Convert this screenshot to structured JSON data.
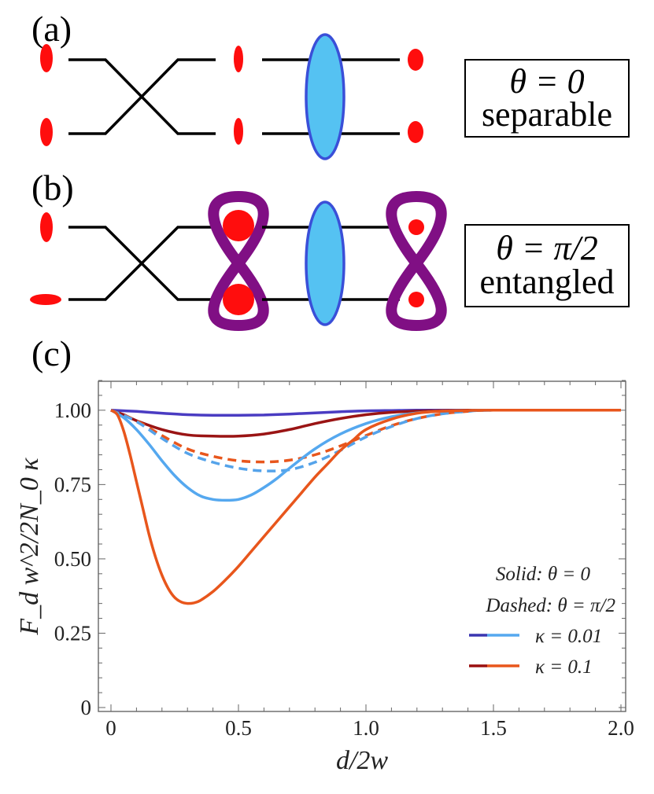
{
  "panels": {
    "a": {
      "label": "(a)",
      "box_line1": "θ = 0",
      "box_line2": "separable"
    },
    "b": {
      "label": "(b)",
      "box_line1": "θ = π/2",
      "box_line2": "entangled"
    },
    "c": {
      "label": "(c)"
    }
  },
  "colors": {
    "spot": "#ff0d0d",
    "beam": "#000000",
    "lens_fill": "#55c2f2",
    "lens_stroke": "#3a4fd8",
    "figure8": "#800f84"
  },
  "chart_data": {
    "type": "line",
    "xlabel": "d/2w",
    "ylabel": "F_d w^2/2N_0 κ",
    "xlim": [
      0,
      2.0
    ],
    "ylim": [
      0,
      1.1
    ],
    "xticks": [
      "0",
      "0.5",
      "1.0",
      "1.5",
      "2.0"
    ],
    "yticks": [
      "0",
      "0.25",
      "0.50",
      "0.75",
      "1.00"
    ],
    "legend": {
      "position": "bottom-right",
      "line1": "Solid: θ = 0",
      "line2": "Dashed: θ = π/2",
      "entries": [
        {
          "label": "κ = 0.01",
          "dark_color": "#3a35b0",
          "light_color": "#55a8ef"
        },
        {
          "label": "κ = 0.1",
          "dark_color": "#9a1010",
          "light_color": "#e8561c"
        }
      ]
    },
    "series": [
      {
        "color": "#4a3cc2",
        "dash": "solid",
        "x": [
          0,
          0.1,
          0.2,
          0.3,
          0.4,
          0.5,
          0.6,
          0.7,
          0.8,
          0.9,
          1.0,
          1.1,
          1.2,
          1.3,
          1.4,
          1.5,
          2.0
        ],
        "y": [
          1.0,
          0.996,
          0.99,
          0.985,
          0.983,
          0.983,
          0.984,
          0.987,
          0.991,
          0.995,
          0.998,
          0.999,
          1.0,
          1.0,
          1.0,
          1.0,
          1.0
        ]
      },
      {
        "color": "#9a1414",
        "dash": "solid",
        "x": [
          0,
          0.05,
          0.1,
          0.2,
          0.3,
          0.4,
          0.5,
          0.6,
          0.7,
          0.8,
          0.9,
          1.0,
          1.1,
          1.2,
          1.3,
          1.4,
          1.5,
          2.0
        ],
        "y": [
          1.0,
          0.985,
          0.965,
          0.935,
          0.917,
          0.913,
          0.913,
          0.92,
          0.935,
          0.955,
          0.972,
          0.985,
          0.993,
          0.997,
          0.999,
          1.0,
          1.0,
          1.0
        ]
      },
      {
        "color": "#e8561c",
        "dash": "dashed",
        "x": [
          0,
          0.1,
          0.2,
          0.3,
          0.4,
          0.5,
          0.6,
          0.7,
          0.8,
          0.9,
          1.0,
          1.1,
          1.2,
          1.3,
          1.4,
          1.5,
          2.0
        ],
        "y": [
          1.0,
          0.965,
          0.915,
          0.87,
          0.845,
          0.83,
          0.826,
          0.832,
          0.85,
          0.88,
          0.915,
          0.948,
          0.972,
          0.988,
          0.996,
          1.0,
          1.0
        ]
      },
      {
        "color": "#55a3ea",
        "dash": "dashed",
        "x": [
          0,
          0.1,
          0.2,
          0.3,
          0.4,
          0.5,
          0.6,
          0.7,
          0.8,
          0.9,
          1.0,
          1.1,
          1.2,
          1.3,
          1.4,
          1.5,
          2.0
        ],
        "y": [
          1.0,
          0.962,
          0.905,
          0.855,
          0.825,
          0.805,
          0.796,
          0.8,
          0.825,
          0.865,
          0.91,
          0.945,
          0.972,
          0.988,
          0.996,
          1.0,
          1.0
        ]
      },
      {
        "color": "#55a8ef",
        "dash": "solid",
        "x": [
          0,
          0.05,
          0.1,
          0.15,
          0.2,
          0.25,
          0.3,
          0.35,
          0.4,
          0.45,
          0.5,
          0.55,
          0.6,
          0.65,
          0.7,
          0.8,
          0.9,
          1.0,
          1.1,
          1.2,
          1.3,
          1.4,
          1.5,
          2.0
        ],
        "y": [
          1.0,
          0.975,
          0.935,
          0.885,
          0.83,
          0.78,
          0.74,
          0.712,
          0.7,
          0.697,
          0.7,
          0.715,
          0.74,
          0.77,
          0.805,
          0.87,
          0.92,
          0.955,
          0.978,
          0.991,
          0.997,
          0.999,
          1.0,
          1.0
        ]
      },
      {
        "color": "#e8561c",
        "dash": "solid",
        "x": [
          0,
          0.025,
          0.05,
          0.075,
          0.1,
          0.125,
          0.15,
          0.175,
          0.2,
          0.225,
          0.25,
          0.275,
          0.3,
          0.325,
          0.35,
          0.4,
          0.45,
          0.5,
          0.55,
          0.6,
          0.65,
          0.7,
          0.75,
          0.8,
          0.85,
          0.9,
          0.95,
          1.0,
          1.1,
          1.2,
          1.3,
          1.4,
          1.5,
          2.0
        ],
        "y": [
          1.0,
          0.985,
          0.93,
          0.85,
          0.76,
          0.67,
          0.58,
          0.505,
          0.445,
          0.4,
          0.37,
          0.355,
          0.35,
          0.352,
          0.36,
          0.39,
          0.43,
          0.475,
          0.525,
          0.575,
          0.625,
          0.675,
          0.725,
          0.775,
          0.82,
          0.865,
          0.9,
          0.935,
          0.97,
          0.99,
          0.997,
          0.999,
          1.0,
          1.0
        ]
      }
    ]
  }
}
